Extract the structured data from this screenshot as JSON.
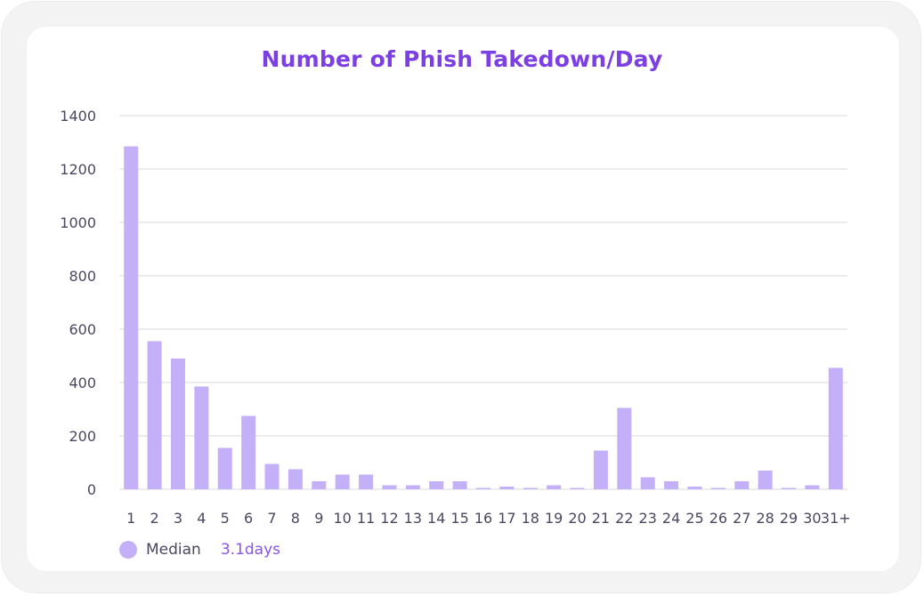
{
  "chart_data": {
    "type": "bar",
    "title": "Number of Phish Takedown/Day",
    "xlabel": "",
    "ylabel": "",
    "ylim": [
      0,
      1400
    ],
    "yticks": [
      0,
      200,
      400,
      600,
      800,
      1000,
      1200,
      1400
    ],
    "grid": true,
    "categories": [
      "1",
      "2",
      "3",
      "4",
      "5",
      "6",
      "7",
      "8",
      "9",
      "10",
      "11",
      "12",
      "13",
      "14",
      "15",
      "16",
      "17",
      "18",
      "19",
      "20",
      "21",
      "22",
      "23",
      "24",
      "25",
      "26",
      "27",
      "28",
      "29",
      "30",
      "31+"
    ],
    "values": [
      1285,
      555,
      490,
      385,
      155,
      275,
      95,
      75,
      30,
      55,
      55,
      15,
      15,
      30,
      30,
      5,
      10,
      5,
      15,
      5,
      145,
      305,
      45,
      30,
      10,
      5,
      30,
      70,
      5,
      15,
      455
    ],
    "legend": {
      "placement": "bottom-left",
      "name": "Median",
      "value": "3.1days"
    },
    "colors": {
      "bar": "#c4b0f8",
      "title": "#7b3fe4",
      "grid": "#e6e6e6",
      "tick": "#4a4760",
      "legend_value": "#8a54ea"
    }
  }
}
